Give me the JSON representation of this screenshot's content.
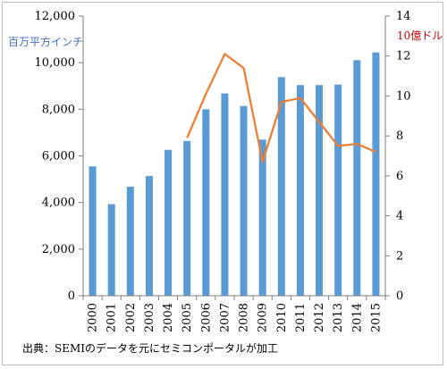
{
  "chart_data": {
    "type": "bar+line",
    "categories": [
      "2000",
      "2001",
      "2002",
      "2003",
      "2004",
      "2005",
      "2006",
      "2007",
      "2008",
      "2009",
      "2010",
      "2011",
      "2012",
      "2013",
      "2014",
      "2015"
    ],
    "series": [
      {
        "name": "",
        "type": "bar",
        "axis": "left",
        "unit_label": "百万平方インチ",
        "color": "#5b9bd5",
        "values": [
          5550,
          3930,
          4680,
          5140,
          6260,
          6640,
          8000,
          8680,
          8140,
          6700,
          9380,
          9040,
          9040,
          9060,
          10110,
          10440
        ]
      },
      {
        "name": "",
        "type": "line",
        "axis": "right",
        "unit_label": "10億ドル",
        "color": "#ed7d31",
        "x": [
          "2005",
          "2006",
          "2007",
          "2008",
          "2009",
          "2010",
          "2011",
          "2012",
          "2013",
          "2014",
          "2015"
        ],
        "values": [
          7.9,
          10.1,
          12.1,
          11.4,
          6.7,
          9.7,
          9.9,
          8.7,
          7.5,
          7.6,
          7.2
        ]
      }
    ],
    "y_left": {
      "min": 0,
      "max": 12000,
      "ticks": [
        0,
        2000,
        4000,
        6000,
        8000,
        10000,
        12000
      ],
      "tick_labels": [
        "0",
        "2,000",
        "4,000",
        "6,000",
        "8,000",
        "10,000",
        "12,000"
      ]
    },
    "y_right": {
      "min": 0,
      "max": 14,
      "ticks": [
        0,
        2,
        4,
        6,
        8,
        10,
        12,
        14
      ],
      "tick_labels": [
        "0",
        "2",
        "4",
        "6",
        "8",
        "10",
        "12",
        "14"
      ]
    },
    "grid": false,
    "legend": "none",
    "left_unit_color": "#4472c4",
    "right_unit_color": "#c00000"
  },
  "source_note": "出典：SEMIのデータを元にセミコンポータルが加工"
}
